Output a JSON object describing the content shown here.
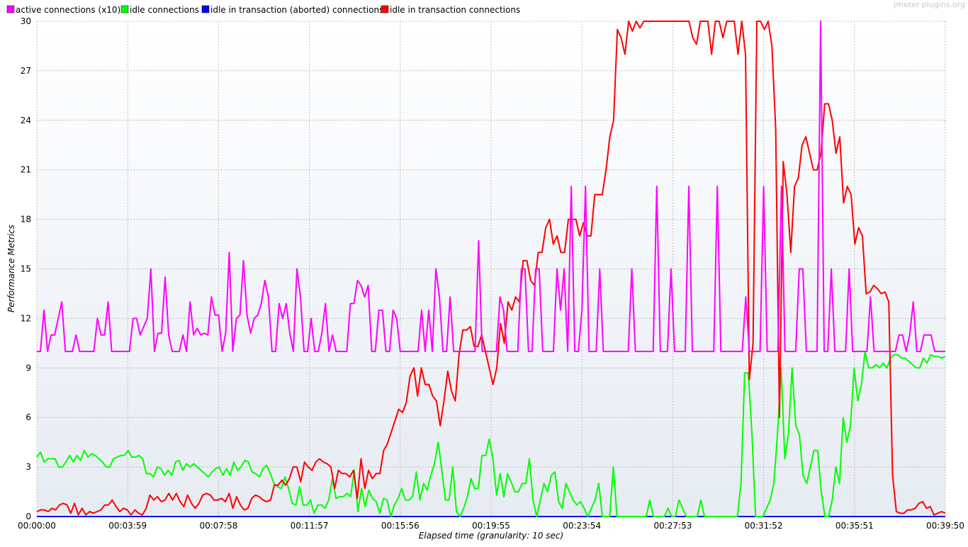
{
  "watermark": "jmeter-plugins.org",
  "chart_data": {
    "type": "line",
    "xlabel": "Elapsed time (granularity: 10 sec)",
    "ylabel": "Performance Metrics",
    "ylim": [
      0,
      30
    ],
    "xlim_seconds": [
      0,
      2390
    ],
    "y_ticks": [
      0,
      3,
      6,
      9,
      12,
      15,
      18,
      21,
      24,
      27,
      30
    ],
    "y_tick_labels": [
      "0",
      "3",
      "6",
      "9",
      "12",
      "15",
      "18",
      "21",
      "24",
      "27",
      "30"
    ],
    "x_tick_labels": [
      "00:00:00",
      "00:03:59",
      "00:07:58",
      "00:11:57",
      "00:15:56",
      "00:19:55",
      "00:23:54",
      "00:27:53",
      "00:31:52",
      "00:35:51",
      "00:39:50"
    ],
    "grid": true,
    "legend_position": "top-left",
    "series": [
      {
        "name": "active connections (x10)",
        "color": "#ff00ff",
        "values": [
          10,
          10,
          12.5,
          10,
          11,
          11,
          12,
          13,
          10,
          10,
          10,
          11,
          10,
          10,
          10,
          10,
          10,
          12,
          11,
          11,
          13,
          10,
          10,
          10,
          10,
          10,
          10,
          12,
          12,
          11,
          11.5,
          12,
          15,
          10,
          11.1,
          11.1,
          14.5,
          11,
          10,
          10,
          10,
          11,
          10,
          13,
          11,
          11.4,
          11,
          11.1,
          11,
          13.3,
          12.2,
          12.2,
          10,
          11.1,
          16,
          10,
          12,
          12.2,
          15.5,
          12.2,
          11.1,
          12,
          12.2,
          12.9,
          14.3,
          13.3,
          10,
          10,
          12.9,
          12,
          12.9,
          11.1,
          10,
          15,
          13.3,
          10,
          10,
          12,
          10,
          10,
          11.1,
          12.9,
          10,
          11,
          10,
          10,
          10,
          10,
          12.9,
          12.9,
          14.3,
          14,
          13.3,
          14,
          10,
          10,
          12.5,
          12.5,
          10,
          10,
          12.5,
          12,
          10,
          10,
          10,
          10,
          10,
          10,
          12.5,
          10,
          12.5,
          10,
          15,
          13.3,
          10,
          10,
          13.3,
          10,
          10,
          10,
          10,
          10,
          10,
          10,
          16.7,
          10,
          10,
          10,
          10,
          10,
          13.3,
          12.5,
          10,
          10,
          10,
          10,
          15,
          15,
          10,
          10,
          15,
          15,
          10,
          10,
          10,
          10,
          15,
          12.5,
          15,
          10,
          20,
          10,
          10,
          12.5,
          20,
          10,
          10,
          10,
          15,
          10,
          10,
          10,
          10,
          10,
          10,
          10,
          10,
          15,
          10,
          10,
          10,
          10,
          10,
          10,
          20,
          10,
          10,
          10,
          15,
          10,
          10,
          10,
          10,
          20,
          10,
          10,
          10,
          10,
          10,
          10,
          10,
          20,
          10,
          10,
          10,
          10,
          10,
          10,
          10,
          13.3,
          10,
          10,
          10,
          10,
          20,
          10,
          10,
          10,
          10,
          20,
          10,
          10,
          10,
          10,
          15,
          15,
          10,
          10,
          10,
          10,
          30,
          10,
          10,
          15,
          10,
          10,
          10,
          10,
          15,
          10,
          10,
          10,
          10,
          10,
          13.3,
          10,
          10,
          10,
          10,
          10,
          10,
          10,
          11,
          11,
          10,
          11,
          13,
          10,
          10,
          11,
          11,
          11,
          10,
          10,
          10,
          10
        ]
      },
      {
        "name": "idle connections",
        "color": "#00ff00",
        "values": [
          3.6,
          3.9,
          3.3,
          3.5,
          3.5,
          3.5,
          3,
          3,
          3.3,
          3.7,
          3.3,
          3.7,
          3.4,
          4,
          3.6,
          3.8,
          3.7,
          3.5,
          3.3,
          3,
          3,
          3.5,
          3.6,
          3.7,
          3.7,
          4,
          3.6,
          3.6,
          3.7,
          3.5,
          2.6,
          2.6,
          2.4,
          3,
          2.9,
          2.5,
          2.8,
          2.5,
          3.3,
          3.4,
          2.8,
          3.2,
          3,
          3.2,
          3,
          2.8,
          2.6,
          2.4,
          2.7,
          2.9,
          3,
          2.5,
          2.9,
          2.5,
          3.3,
          2.8,
          3,
          3.4,
          3.3,
          2.7,
          2.6,
          2.4,
          2.9,
          3.1,
          2.6,
          2,
          1.8,
          1.7,
          2.4,
          1.7,
          0.8,
          0.7,
          1.8,
          0.7,
          0.7,
          1,
          0.2,
          0.7,
          0.7,
          0.5,
          1,
          2.3,
          1.1,
          1.2,
          1.2,
          1.4,
          1.2,
          2.8,
          0.3,
          1.7,
          0.6,
          1.6,
          1.1,
          0.9,
          0.2,
          1.1,
          1,
          0,
          0.7,
          1.1,
          1.7,
          1,
          1,
          1.2,
          2.7,
          1,
          2,
          1.6,
          2.5,
          3.2,
          4.5,
          2.8,
          1,
          1,
          3,
          0.3,
          0,
          0.5,
          1.2,
          2.3,
          1.7,
          1.7,
          3.7,
          3.7,
          4.7,
          3.5,
          1.3,
          2.6,
          1.2,
          2.6,
          2.1,
          1.5,
          1.5,
          2,
          2,
          3.5,
          1,
          0,
          1,
          2,
          1.5,
          2.5,
          2.7,
          0.9,
          0.5,
          2,
          1.5,
          1,
          0.7,
          0.9,
          0.5,
          0,
          0.5,
          1,
          2,
          0,
          0,
          0,
          3,
          0,
          0,
          0,
          0,
          0,
          0,
          0,
          0,
          0,
          1,
          0,
          0,
          0,
          0,
          0.5,
          0,
          0,
          1,
          0.5,
          0,
          0,
          0,
          0,
          1,
          0,
          0,
          0,
          0,
          0,
          0,
          0,
          0,
          0,
          0,
          2,
          8.7,
          8.7,
          5,
          0,
          0,
          0,
          0.5,
          1,
          2,
          5,
          9,
          3.5,
          5,
          9,
          5.5,
          5,
          2.5,
          2,
          3,
          4,
          4,
          1.5,
          0,
          0,
          1,
          3,
          2,
          6,
          4.5,
          5.5,
          9,
          7,
          8,
          10,
          9,
          9,
          9.2,
          9,
          9.3,
          9,
          9.6,
          9.8,
          9.8,
          9.6,
          9.6,
          9.4,
          9.2,
          9,
          9,
          9.6,
          9.3,
          9.8,
          9.7,
          9.7,
          9.6,
          9.7
        ]
      },
      {
        "name": "idle in transaction (aborted) connections",
        "color": "#0000ff",
        "values": [
          0,
          0,
          0,
          0,
          0,
          0,
          0,
          0,
          0,
          0,
          0,
          0,
          0,
          0,
          0,
          0,
          0,
          0,
          0,
          0,
          0,
          0,
          0,
          0,
          0,
          0,
          0,
          0,
          0,
          0,
          0,
          0,
          0,
          0,
          0,
          0,
          0,
          0,
          0,
          0,
          0,
          0,
          0,
          0,
          0,
          0,
          0,
          0,
          0,
          0,
          0,
          0,
          0,
          0,
          0,
          0,
          0,
          0,
          0,
          0,
          0,
          0,
          0,
          0,
          0,
          0,
          0,
          0,
          0,
          0,
          0,
          0,
          0,
          0,
          0,
          0,
          0,
          0,
          0,
          0,
          0,
          0,
          0,
          0,
          0,
          0,
          0,
          0,
          0,
          0,
          0,
          0,
          0,
          0,
          0,
          0,
          0,
          0,
          0,
          0,
          0,
          0,
          0,
          0,
          0,
          0,
          0,
          0,
          0,
          0,
          0,
          0,
          0,
          0,
          0,
          0,
          0,
          0,
          0,
          0,
          0,
          0,
          0,
          0,
          0,
          0,
          0,
          0,
          0,
          0,
          0,
          0,
          0,
          0,
          0,
          0,
          0,
          0,
          0,
          0,
          0,
          0,
          0,
          0,
          0,
          0,
          0,
          0,
          0,
          0,
          0,
          0,
          0,
          0,
          0,
          0,
          0,
          0,
          0,
          0,
          0,
          0,
          0,
          0,
          0,
          0,
          0,
          0,
          0,
          0,
          0,
          0,
          0,
          0,
          0,
          0,
          0,
          0,
          0,
          0,
          0,
          0,
          0,
          0,
          0,
          0,
          0,
          0,
          0,
          0,
          0,
          0,
          0,
          0,
          0,
          0,
          0,
          0,
          0,
          0,
          0,
          0,
          0,
          0,
          0,
          0,
          0,
          0,
          0,
          0,
          0,
          0,
          0,
          0,
          0,
          0,
          0,
          0,
          0,
          0,
          0,
          0,
          0,
          0,
          0,
          0,
          0,
          0,
          0,
          0,
          0,
          0,
          0,
          0,
          0,
          0,
          0,
          0,
          0,
          0,
          0,
          0,
          0,
          0,
          0,
          0,
          0
        ]
      },
      {
        "name": "idle in transaction connections",
        "color": "#ff0000",
        "values": [
          0.3,
          0.4,
          0.4,
          0.3,
          0.5,
          0.4,
          0.7,
          0.8,
          0.7,
          0.2,
          0.8,
          0.1,
          0.5,
          0.1,
          0.3,
          0.2,
          0.3,
          0.4,
          0.7,
          0.7,
          1,
          0.6,
          0.3,
          0.5,
          0.4,
          0.1,
          0.4,
          0.2,
          0.1,
          0.5,
          1.3,
          1,
          1.2,
          0.9,
          1,
          1.4,
          1,
          1.4,
          0.9,
          0.6,
          1.3,
          0.8,
          0.5,
          0.8,
          1.3,
          1.4,
          1.3,
          1,
          1,
          1.1,
          0.9,
          1.4,
          0.5,
          1.2,
          0.7,
          0.4,
          0.5,
          1.1,
          1.3,
          1.2,
          1,
          0.9,
          1,
          1.9,
          1.9,
          2.2,
          1.9,
          2.3,
          3,
          3,
          2.1,
          3.3,
          3,
          2.8,
          3.3,
          3.5,
          3.3,
          3.2,
          3,
          1.7,
          2.8,
          2.6,
          2.6,
          2.4,
          2.8,
          1.1,
          3.5,
          1.7,
          2.8,
          2.3,
          2.6,
          2.6,
          4,
          4.4,
          5.1,
          5.8,
          6.5,
          6.3,
          6.9,
          8.5,
          9,
          7.3,
          9,
          8,
          8,
          7.3,
          7,
          5.5,
          7,
          8.8,
          7.6,
          7,
          9.8,
          11.3,
          11.3,
          11.5,
          10.3,
          10.3,
          11,
          10,
          9,
          8,
          9,
          11.7,
          10.5,
          13,
          12.5,
          13.3,
          13,
          15.5,
          15.5,
          14.3,
          14,
          16,
          16,
          17.5,
          18,
          16.5,
          17,
          16,
          16,
          18,
          18,
          18,
          17,
          17.8,
          17,
          17,
          19.5,
          19.5,
          19.5,
          21,
          23,
          24,
          29.5,
          29,
          28,
          30,
          29.4,
          30,
          29.6,
          30,
          30,
          30,
          30,
          30,
          30,
          30,
          30,
          30,
          30,
          30,
          30,
          30,
          29,
          28.6,
          30,
          30,
          30,
          28,
          30,
          30,
          29,
          30,
          30,
          30,
          28,
          30,
          28,
          8.3,
          10.5,
          30,
          30,
          29.5,
          30,
          28.5,
          23.5,
          6,
          21.5,
          19.5,
          16,
          20,
          20.5,
          22.5,
          23,
          22,
          21,
          21,
          22,
          25,
          25,
          24,
          22,
          23,
          19,
          20,
          19.5,
          16.5,
          17.5,
          17,
          13.5,
          13.6,
          14,
          13.8,
          13.5,
          13.6,
          13,
          2.5,
          0.3,
          0.2,
          0.2,
          0.4,
          0.4,
          0.5,
          0.8,
          0.9,
          0.5,
          0.6,
          0.1,
          0.2,
          0.3,
          0.2
        ]
      }
    ]
  }
}
